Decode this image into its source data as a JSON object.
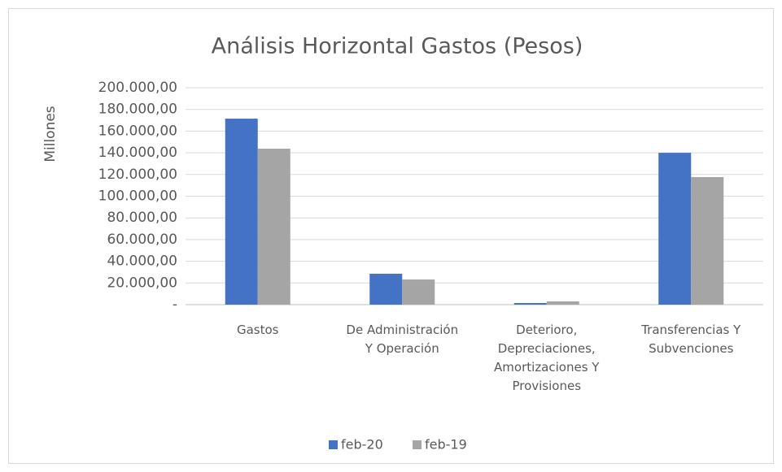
{
  "chart_data": {
    "type": "bar",
    "title": "Análisis Horizontal Gastos (Pesos)",
    "y_label": "Millones",
    "categories": [
      "Gastos",
      "De Administración Y Operación",
      "Deterioro, Depreciaciones, Amortizaciones Y Provisiones",
      "Transferencias Y Subvenciones"
    ],
    "series": [
      {
        "name": "feb-20",
        "color": "#4472c4",
        "values": [
          171500,
          28500,
          1500,
          140000
        ]
      },
      {
        "name": "feb-19",
        "color": "#a5a5a5",
        "values": [
          143800,
          23200,
          3000,
          117600
        ]
      }
    ],
    "ylim": [
      0,
      200000
    ],
    "yticks": [
      {
        "value": 0,
        "label": "-"
      },
      {
        "value": 20000,
        "label": "20.000,00"
      },
      {
        "value": 40000,
        "label": "40.000,00"
      },
      {
        "value": 60000,
        "label": "60.000,00"
      },
      {
        "value": 80000,
        "label": "80.000,00"
      },
      {
        "value": 100000,
        "label": "100.000,00"
      },
      {
        "value": 120000,
        "label": "120.000,00"
      },
      {
        "value": 140000,
        "label": "140.000,00"
      },
      {
        "value": 160000,
        "label": "160.000,00"
      },
      {
        "value": 180000,
        "label": "180.000,00"
      },
      {
        "value": 200000,
        "label": "200.000,00"
      }
    ],
    "grid": true,
    "legend": "bottom"
  }
}
